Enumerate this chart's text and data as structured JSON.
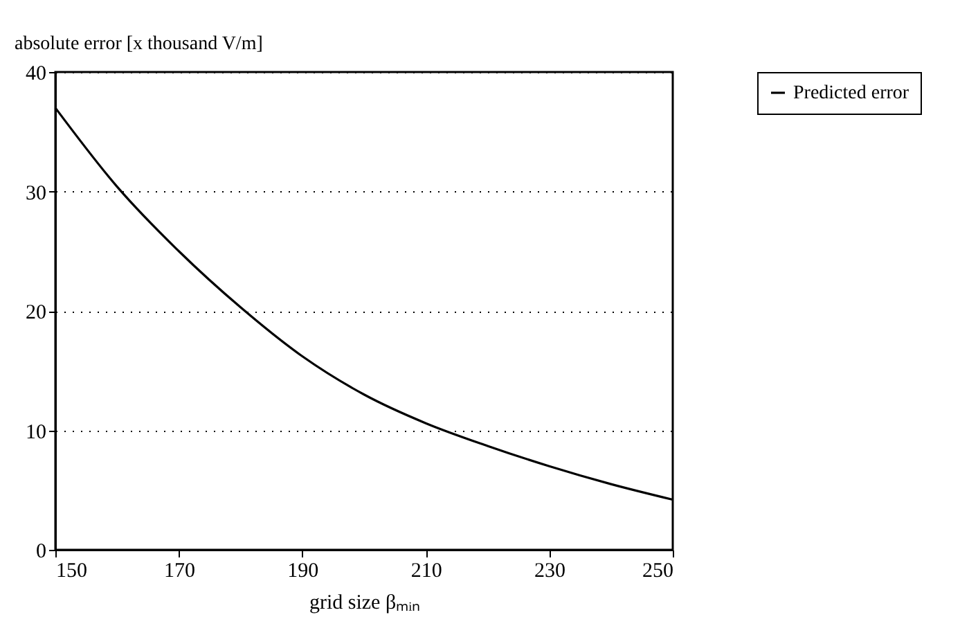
{
  "chart_data": {
    "type": "line",
    "xlabel": "grid size βₘᵢₙ",
    "ylabel": "absolute error [x thousand V/m]",
    "x": [
      150,
      160,
      170,
      180,
      190,
      200,
      210,
      220,
      230,
      240,
      250
    ],
    "series": [
      {
        "name": "Predicted error",
        "color": "#000000",
        "values": [
          37.0,
          30.4,
          25.0,
          20.3,
          16.2,
          13.0,
          10.6,
          8.7,
          7.0,
          5.5,
          4.2
        ]
      }
    ],
    "xlim": [
      150,
      250
    ],
    "xticks": [
      150,
      170,
      190,
      210,
      230,
      250
    ],
    "ylim": [
      0,
      40
    ],
    "yticks": [
      0,
      10,
      20,
      30,
      40
    ],
    "grid": "y",
    "legend": "right",
    "marker": "none",
    "line_style": "solid"
  }
}
